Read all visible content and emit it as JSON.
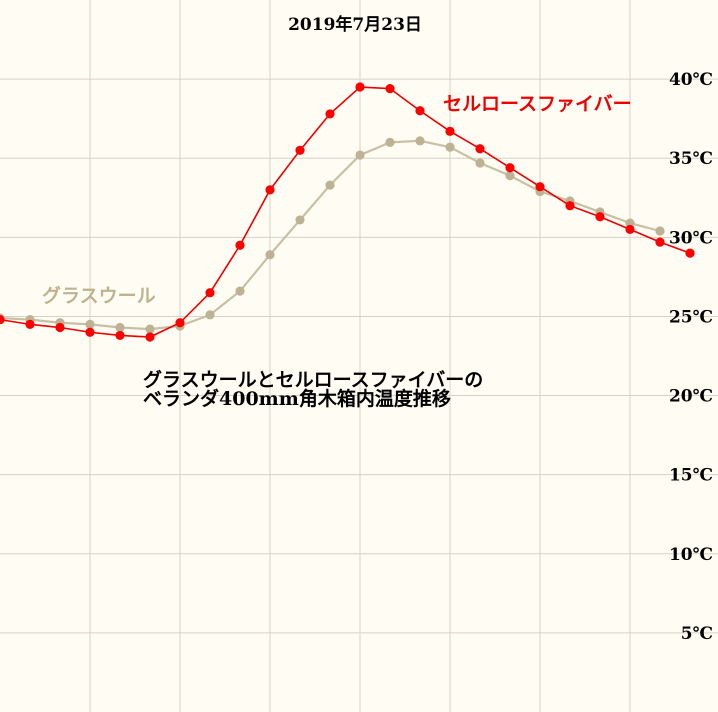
{
  "chart_data": {
    "type": "line",
    "title": "2019年7月23日",
    "annotation_lines": [
      "グラスウールとセルロースファイバーの",
      "ベランダ400mm角木箱内温度推移"
    ],
    "y_unit": "℃",
    "ylim": [
      0,
      45
    ],
    "y_ticks": [
      {
        "value": 5,
        "label": "5℃"
      },
      {
        "value": 10,
        "label": "10℃"
      },
      {
        "value": 15,
        "label": "15℃"
      },
      {
        "value": 20,
        "label": "20℃"
      },
      {
        "value": 25,
        "label": "25℃"
      },
      {
        "value": 30,
        "label": "30℃"
      },
      {
        "value": 35,
        "label": "35℃"
      },
      {
        "value": 40,
        "label": "40℃"
      }
    ],
    "grid": true,
    "series": [
      {
        "name": "セルロースファイバー",
        "color": "#ee0000",
        "marker_color": "#ff0000",
        "values": [
          24.8,
          24.5,
          24.3,
          24.0,
          23.8,
          23.7,
          24.6,
          26.5,
          29.5,
          33.0,
          35.5,
          37.8,
          39.5,
          39.4,
          38.0,
          36.7,
          35.6,
          34.4,
          33.2,
          32.0,
          31.3,
          30.5,
          29.7,
          29.0
        ]
      },
      {
        "name": "グラスウール",
        "color": "#c8c0a4",
        "marker_color": "#bdb394",
        "values": [
          24.9,
          24.8,
          24.6,
          24.5,
          24.3,
          24.2,
          24.4,
          25.1,
          26.6,
          28.9,
          31.1,
          33.3,
          35.2,
          36.0,
          36.1,
          35.7,
          34.7,
          33.9,
          32.9,
          32.3,
          31.6,
          30.9,
          30.4
        ]
      }
    ]
  }
}
